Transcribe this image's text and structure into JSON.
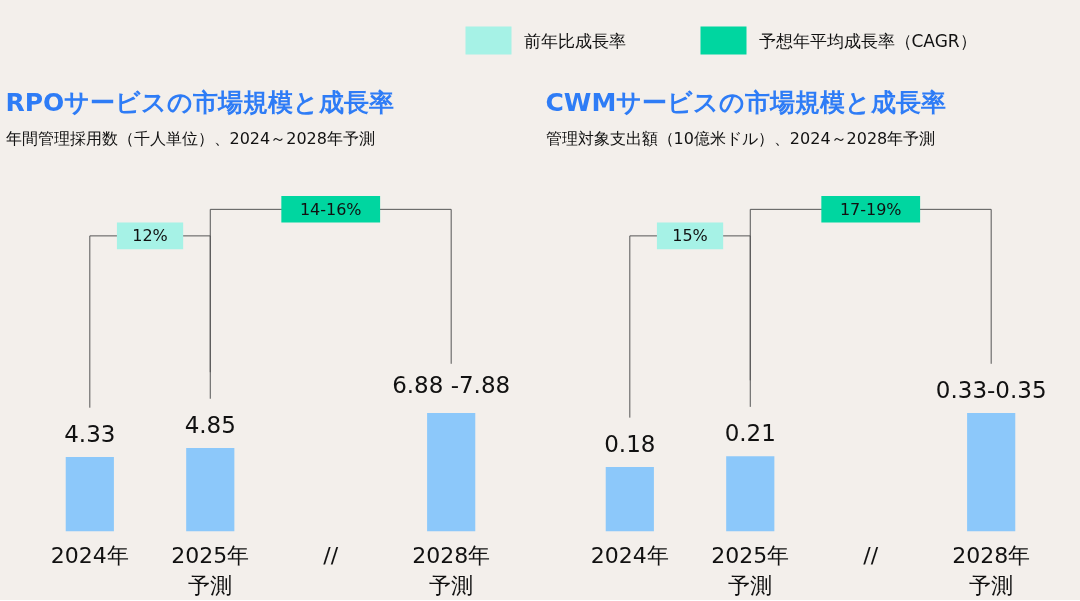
{
  "chart_data": [
    {
      "type": "other",
      "categories": [
        "前年比成長率",
        "予想年平均成長率（CAGR）"
      ],
      "colors": [
        "#a6f2e6",
        "#00d6a0"
      ]
    },
    {
      "type": "bar",
      "title": "RPOサービスの市場規模と成長率",
      "subtitle": "年間管理採用数（千人単位）、2024～2028年予測",
      "categories": [
        "2024年",
        "2025年予測",
        "//",
        "2028年予測"
      ],
      "series": [
        {
          "color": "#8cc8fa",
          "values": [
            4.33,
            4.85,
            null,
            6.88
          ],
          "value_labels": [
            "4.33",
            "4.85",
            null,
            "6.88 -7.88"
          ]
        }
      ],
      "annotations": [
        "12%",
        "14-16%"
      ]
    },
    {
      "type": "bar",
      "title": "CWMサービスの市場規模と成長率",
      "subtitle": "管理対象支出額（10億米ドル）、2024～2028年予測",
      "categories": [
        "2024年",
        "2025年予測",
        "//",
        "2028年予測"
      ],
      "series": [
        {
          "color": "#8cc8fa",
          "values": [
            0.18,
            0.21,
            null,
            0.33
          ],
          "value_labels": [
            "0.18",
            "0.21",
            null,
            "0.33-0.35"
          ]
        }
      ],
      "annotations": [
        "15%",
        "17-19%"
      ]
    }
  ]
}
